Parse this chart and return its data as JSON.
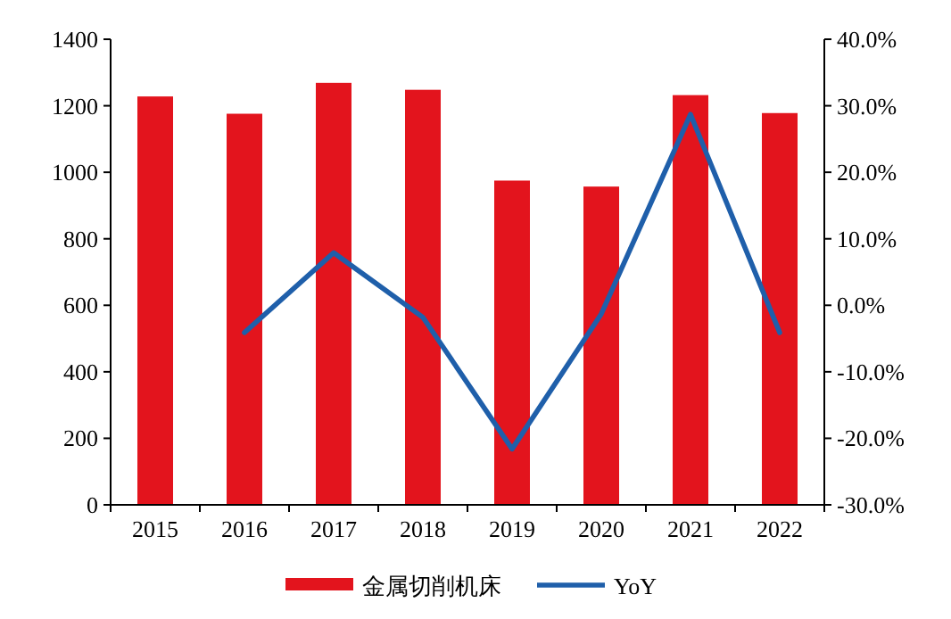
{
  "chart_data": {
    "type": "bar",
    "categories": [
      "2015",
      "2016",
      "2017",
      "2018",
      "2019",
      "2020",
      "2021",
      "2022"
    ],
    "series": [
      {
        "name": "金属切削机床",
        "color": "#e3141d",
        "values": [
          1228,
          1176,
          1269,
          1248,
          975,
          957,
          1232,
          1178
        ]
      },
      {
        "name": "YoY",
        "type": "line",
        "axis": "y2",
        "color": "#1f5faa",
        "values": [
          null,
          -4.1,
          7.9,
          -1.8,
          -21.6,
          -1.3,
          28.7,
          -4.1
        ]
      }
    ],
    "ylim": [
      0,
      1400
    ],
    "yticks": [
      0,
      200,
      400,
      600,
      800,
      1000,
      1200,
      1400
    ],
    "y2lim": [
      -30,
      40
    ],
    "y2ticks": [
      {
        "value": -30,
        "label": "-30.0%"
      },
      {
        "value": -20,
        "label": "-20.0%"
      },
      {
        "value": -10,
        "label": "-10.0%"
      },
      {
        "value": 0,
        "label": "0.0%"
      },
      {
        "value": 10,
        "label": "10.0%"
      },
      {
        "value": 20,
        "label": "20.0%"
      },
      {
        "value": 30,
        "label": "30.0%"
      },
      {
        "value": 40,
        "label": "40.0%"
      }
    ],
    "legend": "bottom",
    "grid": false,
    "marker": "none",
    "line_style": "solid"
  }
}
